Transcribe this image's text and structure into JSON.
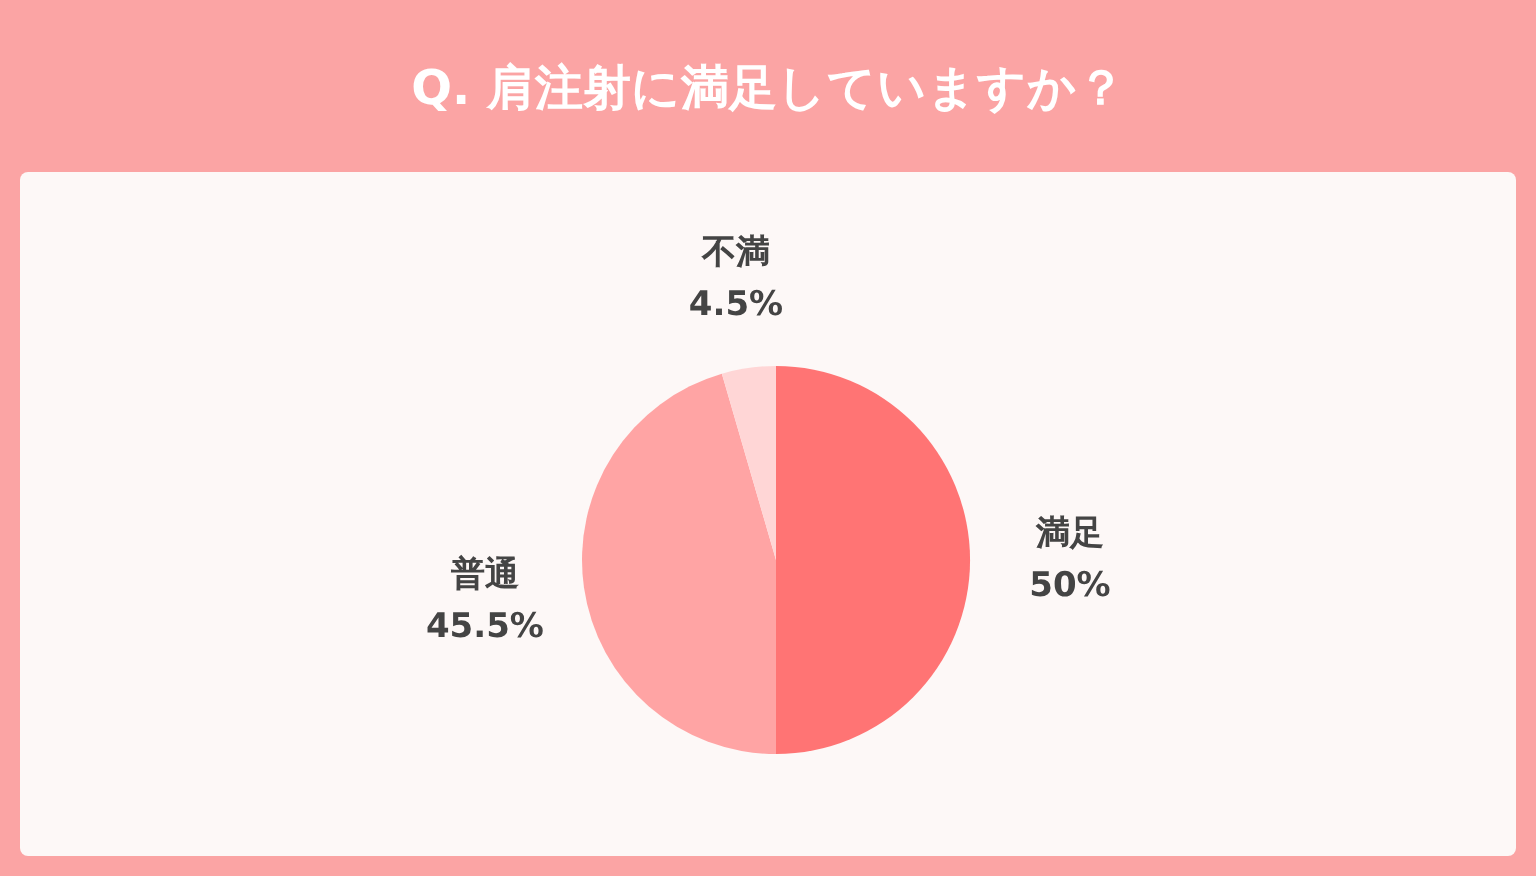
{
  "chart_data": {
    "type": "pie",
    "title": "Q. 肩注射に満足していますか？",
    "categories": [
      "満足",
      "普通",
      "不満"
    ],
    "values": [
      50,
      45.5,
      4.5
    ],
    "value_labels": [
      "50%",
      "45.5%",
      "4.5%"
    ],
    "colors": [
      "#ff7474",
      "#ffa4a4",
      "#ffd6d6"
    ]
  }
}
